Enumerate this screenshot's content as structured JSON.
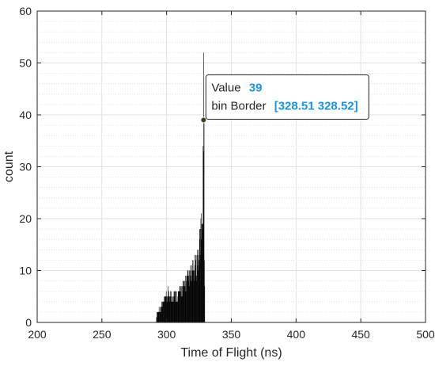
{
  "chart_data": {
    "type": "histogram",
    "xlabel": "Time of Flight (ns)",
    "ylabel": "count",
    "xlim": [
      200,
      500
    ],
    "ylim": [
      0,
      60
    ],
    "xticks": [
      "200",
      "250",
      "300",
      "350",
      "400",
      "450",
      "500"
    ],
    "yticks": [
      "0",
      "10",
      "20",
      "30",
      "40",
      "50",
      "60"
    ],
    "grid": true,
    "minor_grid_y": true,
    "bar_color": "#000000",
    "bins_ns": [
      292,
      294,
      296,
      298,
      300,
      302,
      304,
      306,
      308,
      310,
      312,
      314,
      316,
      318,
      320,
      322,
      324,
      325,
      326,
      327,
      328,
      328.5,
      329,
      329.5
    ],
    "counts": [
      2,
      3,
      4,
      5,
      6,
      7,
      6,
      7,
      6,
      7,
      8,
      9,
      10,
      11,
      12,
      13,
      15,
      17,
      20,
      24,
      30,
      52,
      20,
      5
    ],
    "datatip": {
      "value_label": "Value",
      "value": "39",
      "bin_label": "bin Border",
      "bin_value": "[328.51 328.52]",
      "x": 328.51,
      "y": 39
    }
  }
}
